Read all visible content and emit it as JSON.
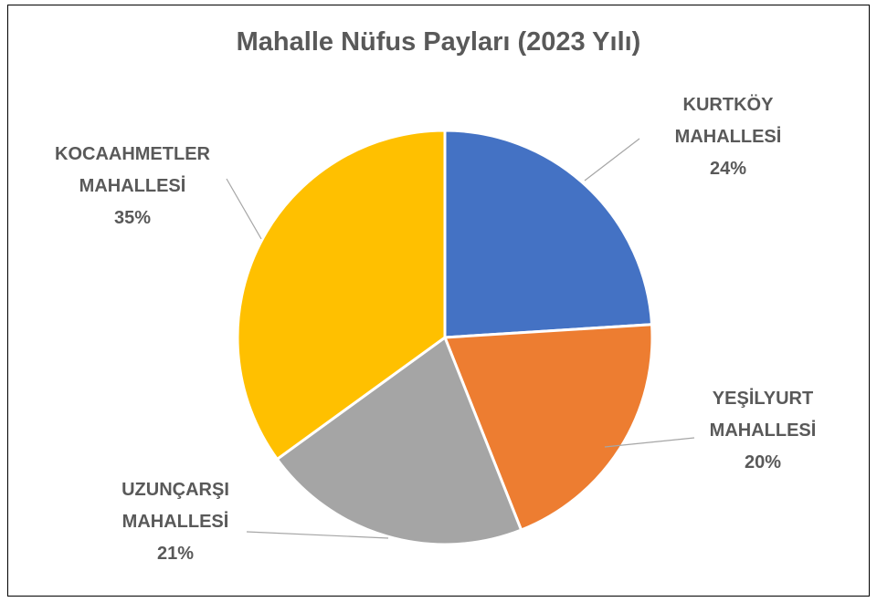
{
  "chart_data": {
    "type": "pie",
    "title": "Mahalle Nüfus Payları (2023 Yılı)",
    "categories": [
      "KURTKÖY MAHALLESİ",
      "YEŞİLYURT MAHALLESİ",
      "UZUNÇARŞI MAHALLESİ",
      "KOCAAHMETLER MAHALLESİ"
    ],
    "values": [
      24,
      20,
      21,
      35
    ],
    "value_labels": [
      "24%",
      "20%",
      "21%",
      "35%"
    ],
    "colors": [
      "#4472c4",
      "#ed7d31",
      "#a5a5a5",
      "#ffc000"
    ]
  }
}
